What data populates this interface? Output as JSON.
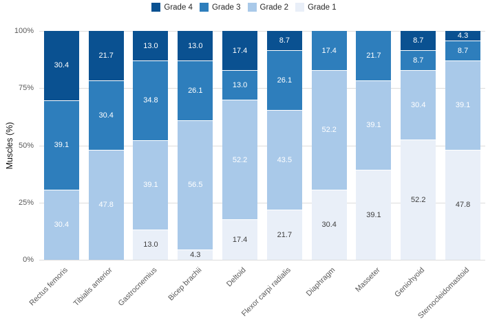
{
  "chart_data": {
    "type": "bar",
    "stacked": true,
    "title": "",
    "xlabel": "",
    "ylabel": "Muscles (%)",
    "ylim": [
      0,
      100
    ],
    "yticks": [
      {
        "value": 0,
        "label": "0%"
      },
      {
        "value": 25,
        "label": "25%"
      },
      {
        "value": 50,
        "label": "50%"
      },
      {
        "value": 75,
        "label": "75%"
      },
      {
        "value": 100,
        "label": "100%"
      }
    ],
    "grid": true,
    "legend_position": "top",
    "legend_order": [
      "Grade 4",
      "Grade 3",
      "Grade 2",
      "Grade 1"
    ],
    "categories": [
      "Rectus femoris",
      "Tibialis anterior",
      "Gastrocnemius",
      "Bicep brachii",
      "Deltoid",
      "Flexor carpi radialis",
      "Diaphragm",
      "Masseter",
      "Geniohyoid",
      "Sternocleidomastoid"
    ],
    "series": [
      {
        "name": "Grade 1",
        "color": "#e9eff8",
        "label_color": "#3d3d3d",
        "values": [
          0,
          0,
          13.0,
          4.3,
          17.4,
          21.7,
          30.4,
          39.1,
          52.2,
          47.8
        ]
      },
      {
        "name": "Grade 2",
        "color": "#a9c9e9",
        "label_color": "#ffffff",
        "values": [
          30.4,
          47.8,
          39.1,
          56.5,
          52.2,
          43.5,
          52.2,
          39.1,
          30.4,
          39.1
        ]
      },
      {
        "name": "Grade 3",
        "color": "#2e7ebc",
        "label_color": "#ffffff",
        "values": [
          39.1,
          30.4,
          34.8,
          26.1,
          13.0,
          26.1,
          17.4,
          21.7,
          8.7,
          8.7
        ]
      },
      {
        "name": "Grade 4",
        "color": "#0a5191",
        "label_color": "#ffffff",
        "values": [
          30.4,
          21.7,
          13.0,
          13.0,
          17.4,
          8.7,
          0,
          0,
          8.7,
          4.3
        ]
      }
    ]
  }
}
